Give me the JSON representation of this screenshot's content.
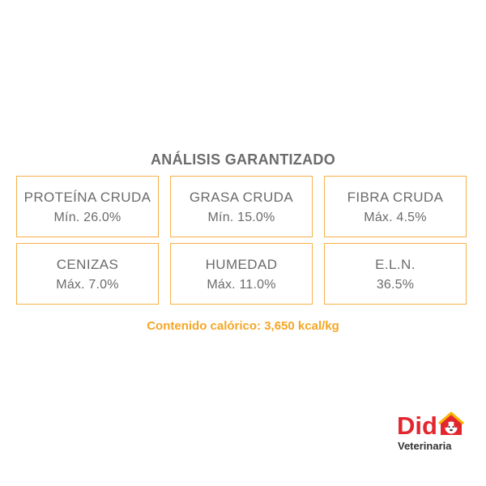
{
  "title": "ANÁLISIS GARANTIZADO",
  "nutrients": [
    {
      "label": "PROTEÍNA CRUDA",
      "value": "Mín. 26.0%"
    },
    {
      "label": "GRASA CRUDA",
      "value": "Mín. 15.0%"
    },
    {
      "label": "FIBRA CRUDA",
      "value": "Máx. 4.5%"
    },
    {
      "label": "CENIZAS",
      "value": "Máx. 7.0%"
    },
    {
      "label": "HUMEDAD",
      "value": "Máx. 11.0%"
    },
    {
      "label": "E.L.N.",
      "value": "36.5%"
    }
  ],
  "caloric_content": "Contenido calórico: 3,650 kcal/kg",
  "logo": {
    "brand": "Dido",
    "subtitle": "Veterinaria",
    "icon": "dog-face-in-house-icon"
  },
  "colors": {
    "border": "#f7b048",
    "text": "#6b6b6b",
    "accent": "#f5a623",
    "brand_red": "#e3262e",
    "brand_yellow": "#f7b500"
  }
}
